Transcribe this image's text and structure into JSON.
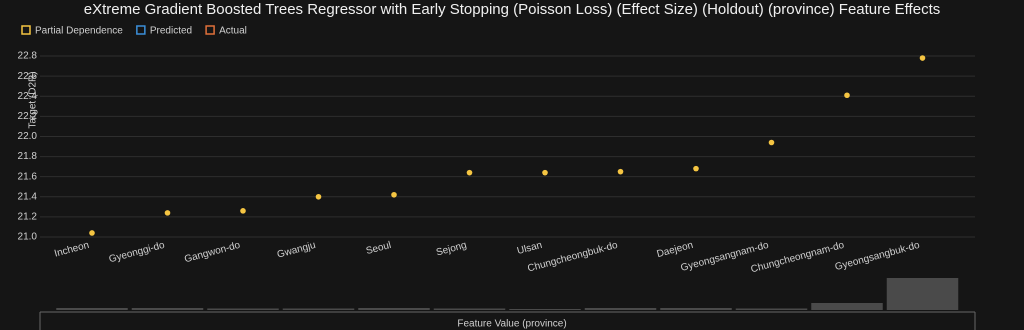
{
  "chart_data": {
    "type": "scatter",
    "title": "eXtreme Gradient Boosted Trees Regressor with Early Stopping (Poisson Loss) (Effect Size) (Holdout) (province) Feature Effects",
    "y_label": "Target (D2R)",
    "x_label": "Feature Value (province)",
    "categories": [
      "Incheon",
      "Gyeonggi-do",
      "Gangwon-do",
      "Gwangju",
      "Seoul",
      "Sejong",
      "Ulsan",
      "Chungcheongbuk-do",
      "Daejeon",
      "Gyeongsangnam-do",
      "Chungcheongnam-do",
      "Gyeongsangbuk-do"
    ],
    "series": [
      {
        "name": "Partial Dependence",
        "color": "#f5c542",
        "values": [
          21.04,
          21.24,
          21.26,
          21.4,
          21.42,
          21.64,
          21.64,
          21.65,
          21.68,
          21.94,
          22.41,
          22.78
        ]
      },
      {
        "name": "Predicted",
        "color": "#3b8fd9",
        "values": [
          null,
          null,
          null,
          null,
          null,
          null,
          null,
          null,
          null,
          null,
          null,
          null
        ]
      },
      {
        "name": "Actual",
        "color": "#e0703a",
        "values": [
          null,
          null,
          null,
          null,
          null,
          null,
          null,
          null,
          null,
          null,
          null,
          null
        ]
      }
    ],
    "histogram": [
      2,
      2,
      1.5,
      1.5,
      2,
      1.5,
      1,
      2,
      2,
      1.5,
      7,
      32
    ],
    "ylim": [
      21.0,
      22.85
    ],
    "yticks": [
      {
        "value": 21.0,
        "label": "21.0"
      },
      21.2,
      21.4,
      21.6,
      21.8,
      {
        "value": 22.0,
        "label": "22.0"
      },
      22.2,
      22.4,
      22.6,
      22.8
    ],
    "grid": true
  }
}
